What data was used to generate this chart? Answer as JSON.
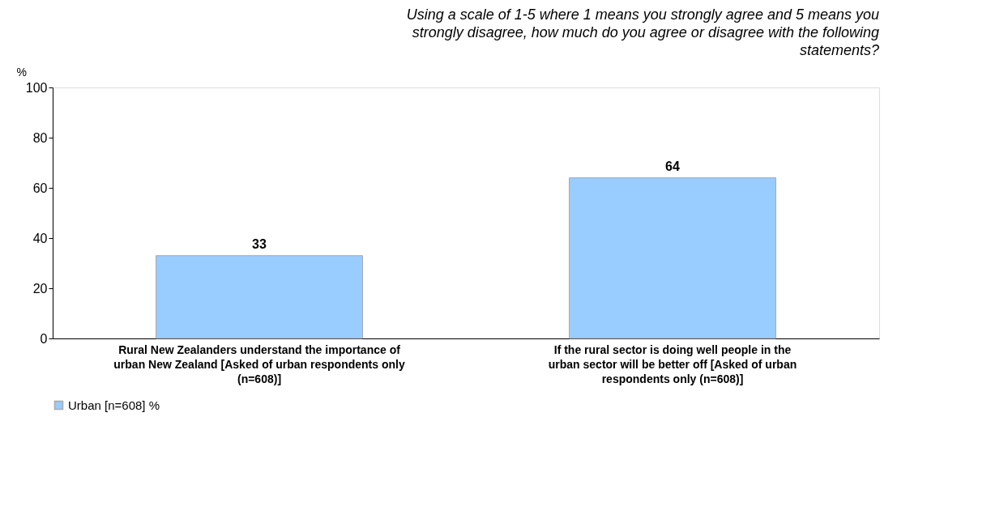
{
  "chart_data": {
    "type": "bar",
    "title": "Using a scale of 1-5 where 1 means you strongly agree and 5 means you strongly disagree, how much do you agree or disagree with the following statements?",
    "ylabel": "%",
    "categories": [
      "Rural New Zealanders understand the importance of urban New Zealand [Asked of urban respondents only (n=608)]",
      "If the rural sector is doing well people in the urban sector will be better off [Asked of urban respondents only (n=608)]"
    ],
    "series": [
      {
        "name": "Urban [n=608]  %",
        "color": "#99ccff",
        "values": [
          33,
          64
        ]
      }
    ],
    "ylim": [
      0,
      100
    ],
    "yticks": [
      0,
      20,
      40,
      60,
      80,
      100
    ],
    "grid": false,
    "legend": "bottom",
    "data_labels": true
  }
}
